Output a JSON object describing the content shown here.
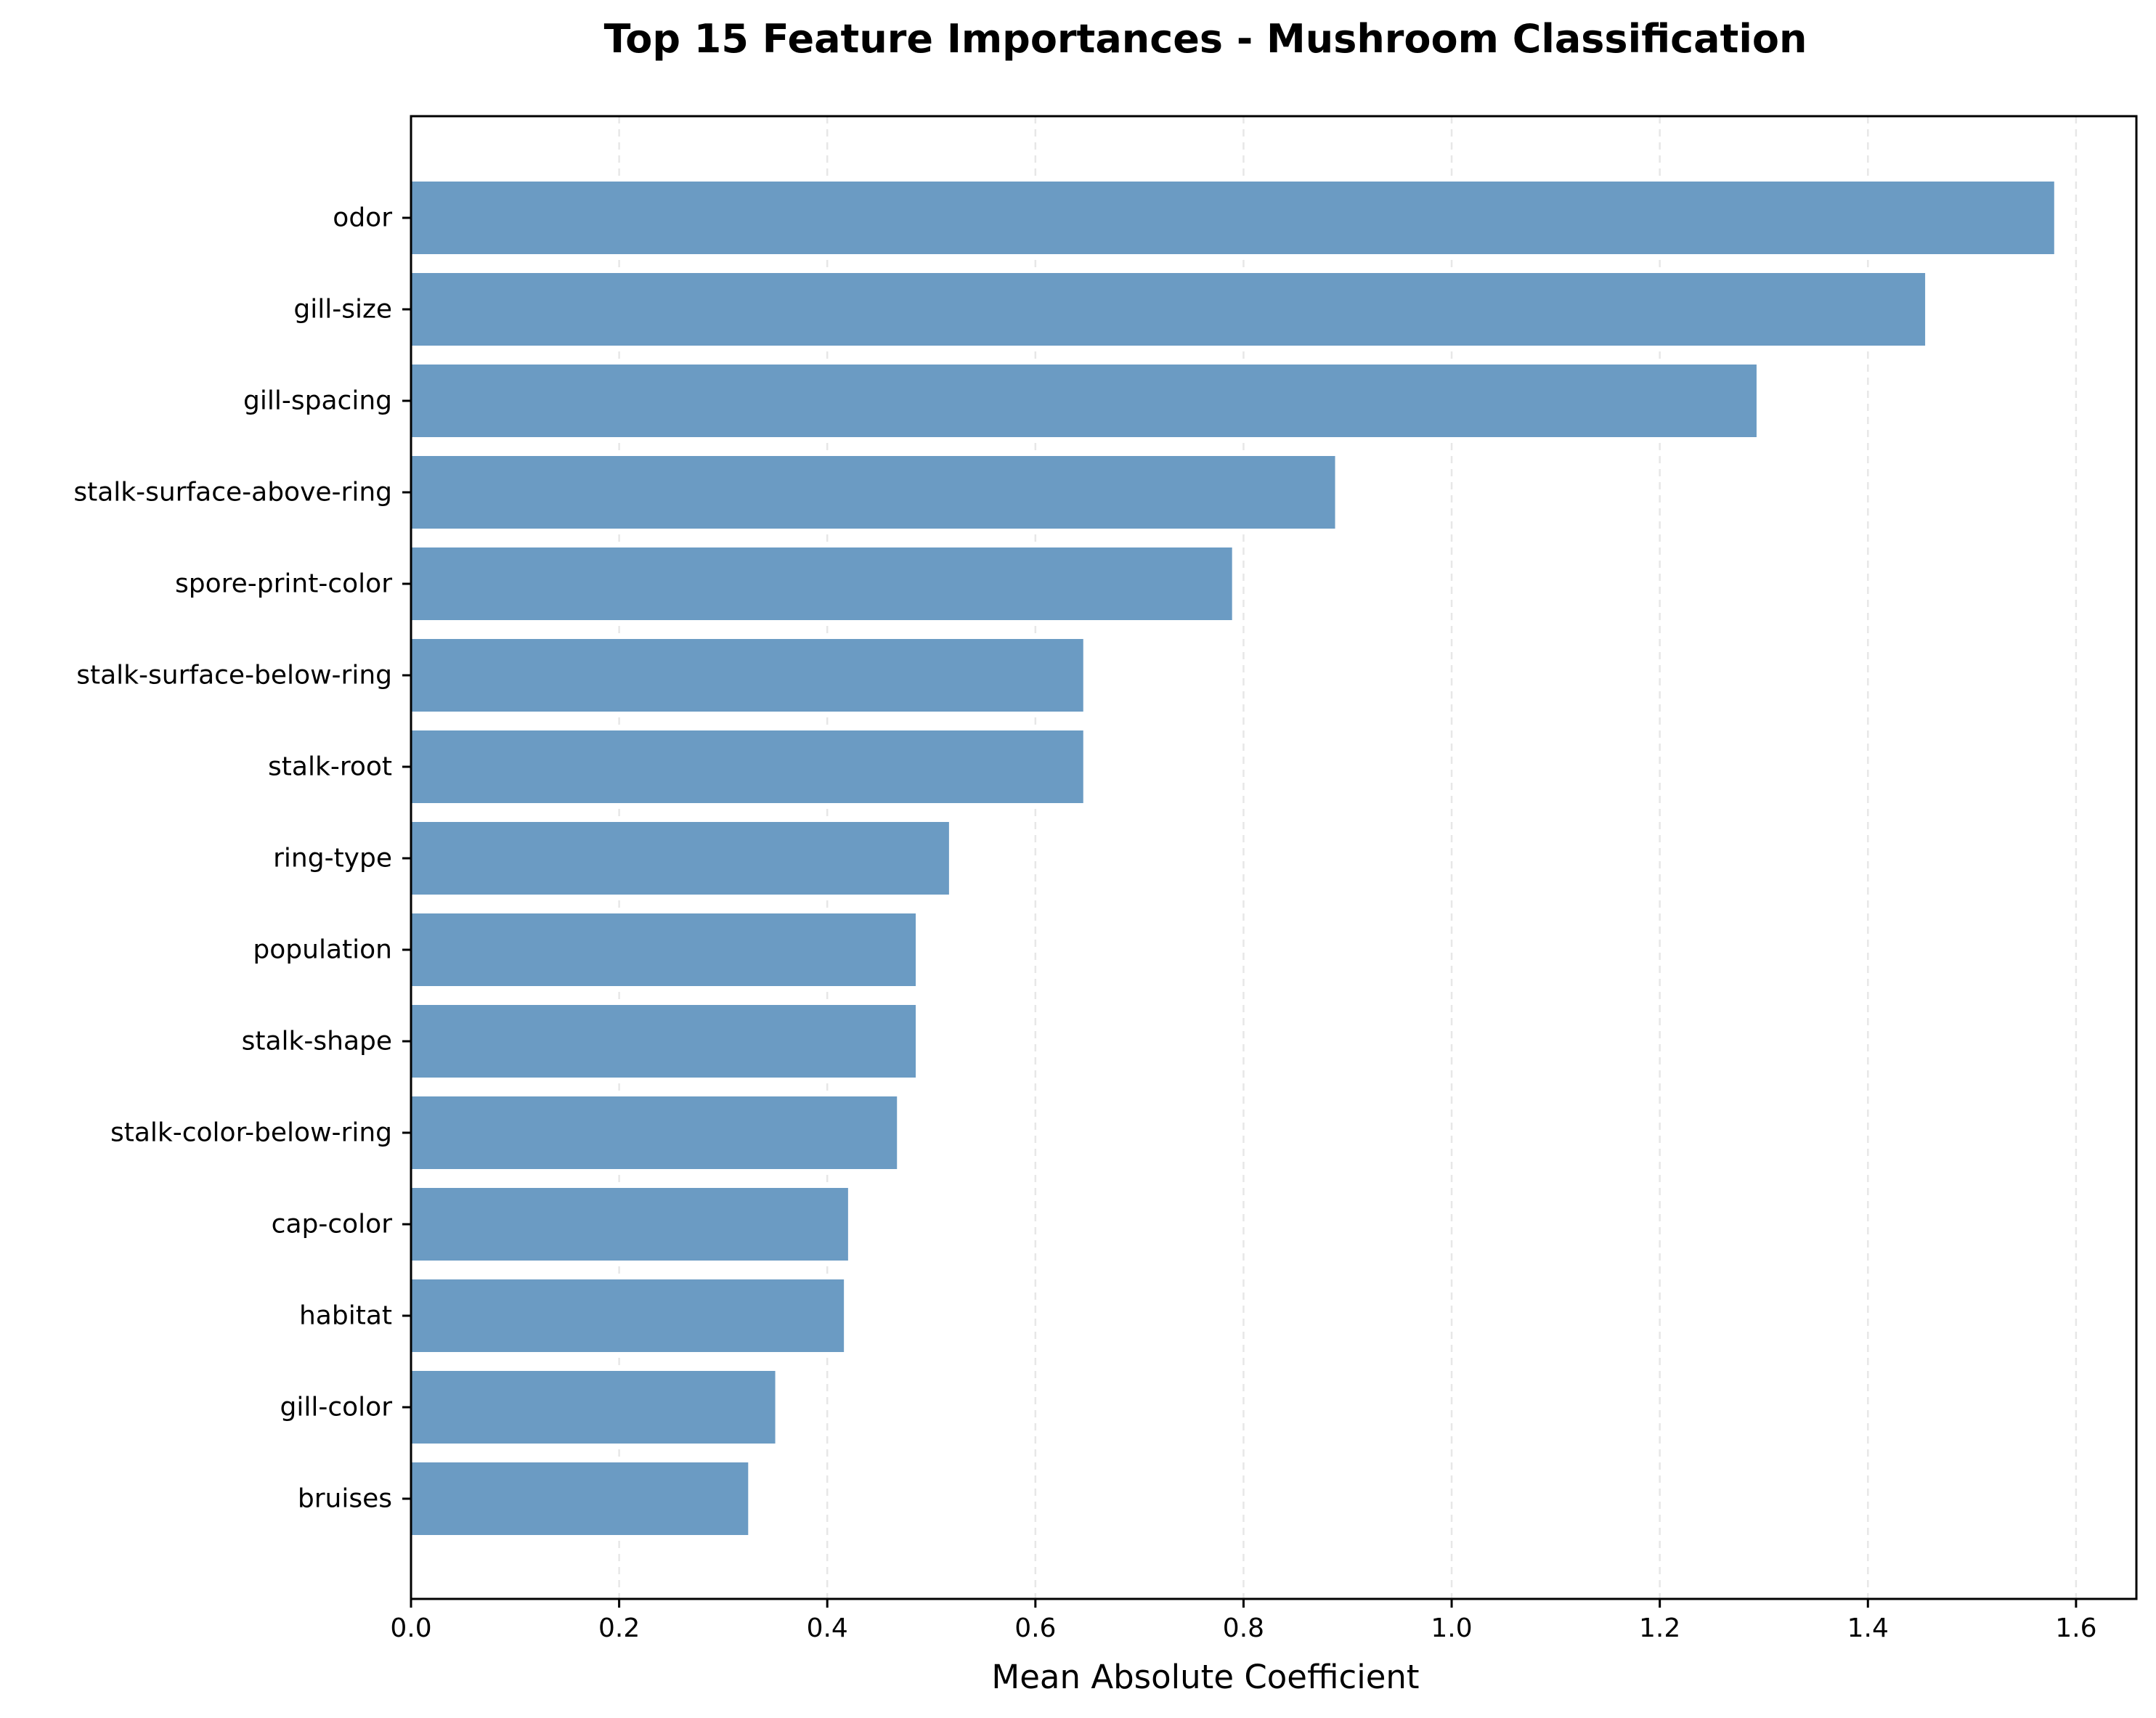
{
  "chart_data": {
    "type": "bar",
    "orientation": "horizontal",
    "title": "Top 15 Feature Importances - Mushroom Classification",
    "xlabel": "Mean Absolute Coefficient",
    "ylabel": "",
    "categories": [
      "odor",
      "gill-size",
      "gill-spacing",
      "stalk-surface-above-ring",
      "spore-print-color",
      "stalk-surface-below-ring",
      "stalk-root",
      "ring-type",
      "population",
      "stalk-shape",
      "stalk-color-below-ring",
      "cap-color",
      "habitat",
      "gill-color",
      "bruises"
    ],
    "values": [
      1.579,
      1.455,
      1.293,
      0.888,
      0.789,
      0.646,
      0.646,
      0.517,
      0.485,
      0.485,
      0.467,
      0.42,
      0.416,
      0.35,
      0.324
    ],
    "xlim": [
      0,
      1.658
    ],
    "xticks": [
      0.0,
      0.2,
      0.4,
      0.6,
      0.8,
      1.0,
      1.2,
      1.4,
      1.6
    ],
    "xtick_labels": [
      "0.0",
      "0.2",
      "0.4",
      "0.6",
      "0.8",
      "1.0",
      "1.2",
      "1.4",
      "1.6"
    ],
    "grid": "x-axis dashed",
    "bar_color": "#6b9bc3",
    "legend": "none"
  }
}
